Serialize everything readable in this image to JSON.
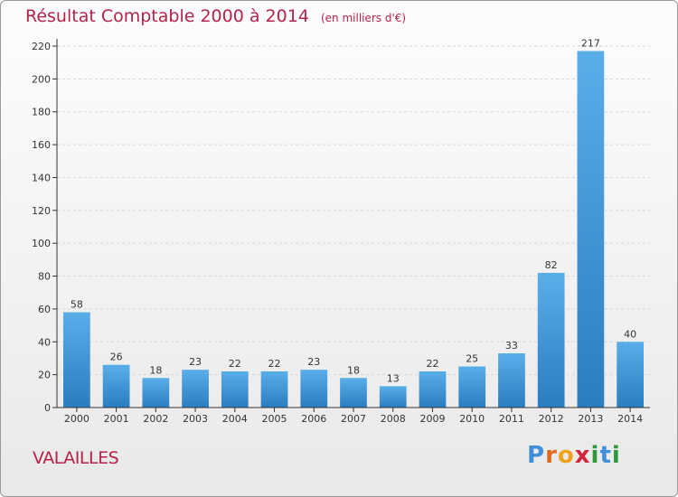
{
  "header": {
    "title": "Résultat Comptable 2000 à 2014",
    "unit": "(en milliers d'€)"
  },
  "footer": {
    "commune": "VALAILLES",
    "logo_letters": [
      "P",
      "r",
      "o",
      "x",
      "i",
      "t",
      "i"
    ],
    "logo_colors": [
      "#3f8fd9",
      "#e26a1f",
      "#f0a21d",
      "#d4253a",
      "#2c9a3c",
      "#3f8fd9",
      "#2c9a3c"
    ]
  },
  "colors": {
    "title": "#b5224a",
    "bar_top": "#5aaee8",
    "bar_bottom": "#2a7dc0",
    "axis": "#333333",
    "grid": "#d6d6d6"
  },
  "chart_data": {
    "type": "bar",
    "title": "Résultat Comptable 2000 à 2014",
    "subtitle": "(en milliers d'€)",
    "xlabel": "",
    "ylabel": "",
    "categories": [
      "2000",
      "2001",
      "2002",
      "2003",
      "2004",
      "2005",
      "2006",
      "2007",
      "2008",
      "2009",
      "2010",
      "2011",
      "2012",
      "2013",
      "2014"
    ],
    "values": [
      58,
      26,
      18,
      23,
      22,
      22,
      23,
      18,
      13,
      22,
      25,
      33,
      82,
      217,
      40
    ],
    "ylim": [
      0,
      220
    ],
    "yticks": [
      0,
      20,
      40,
      60,
      80,
      100,
      120,
      140,
      160,
      180,
      200,
      220
    ],
    "grid": true,
    "data_labels": true
  }
}
